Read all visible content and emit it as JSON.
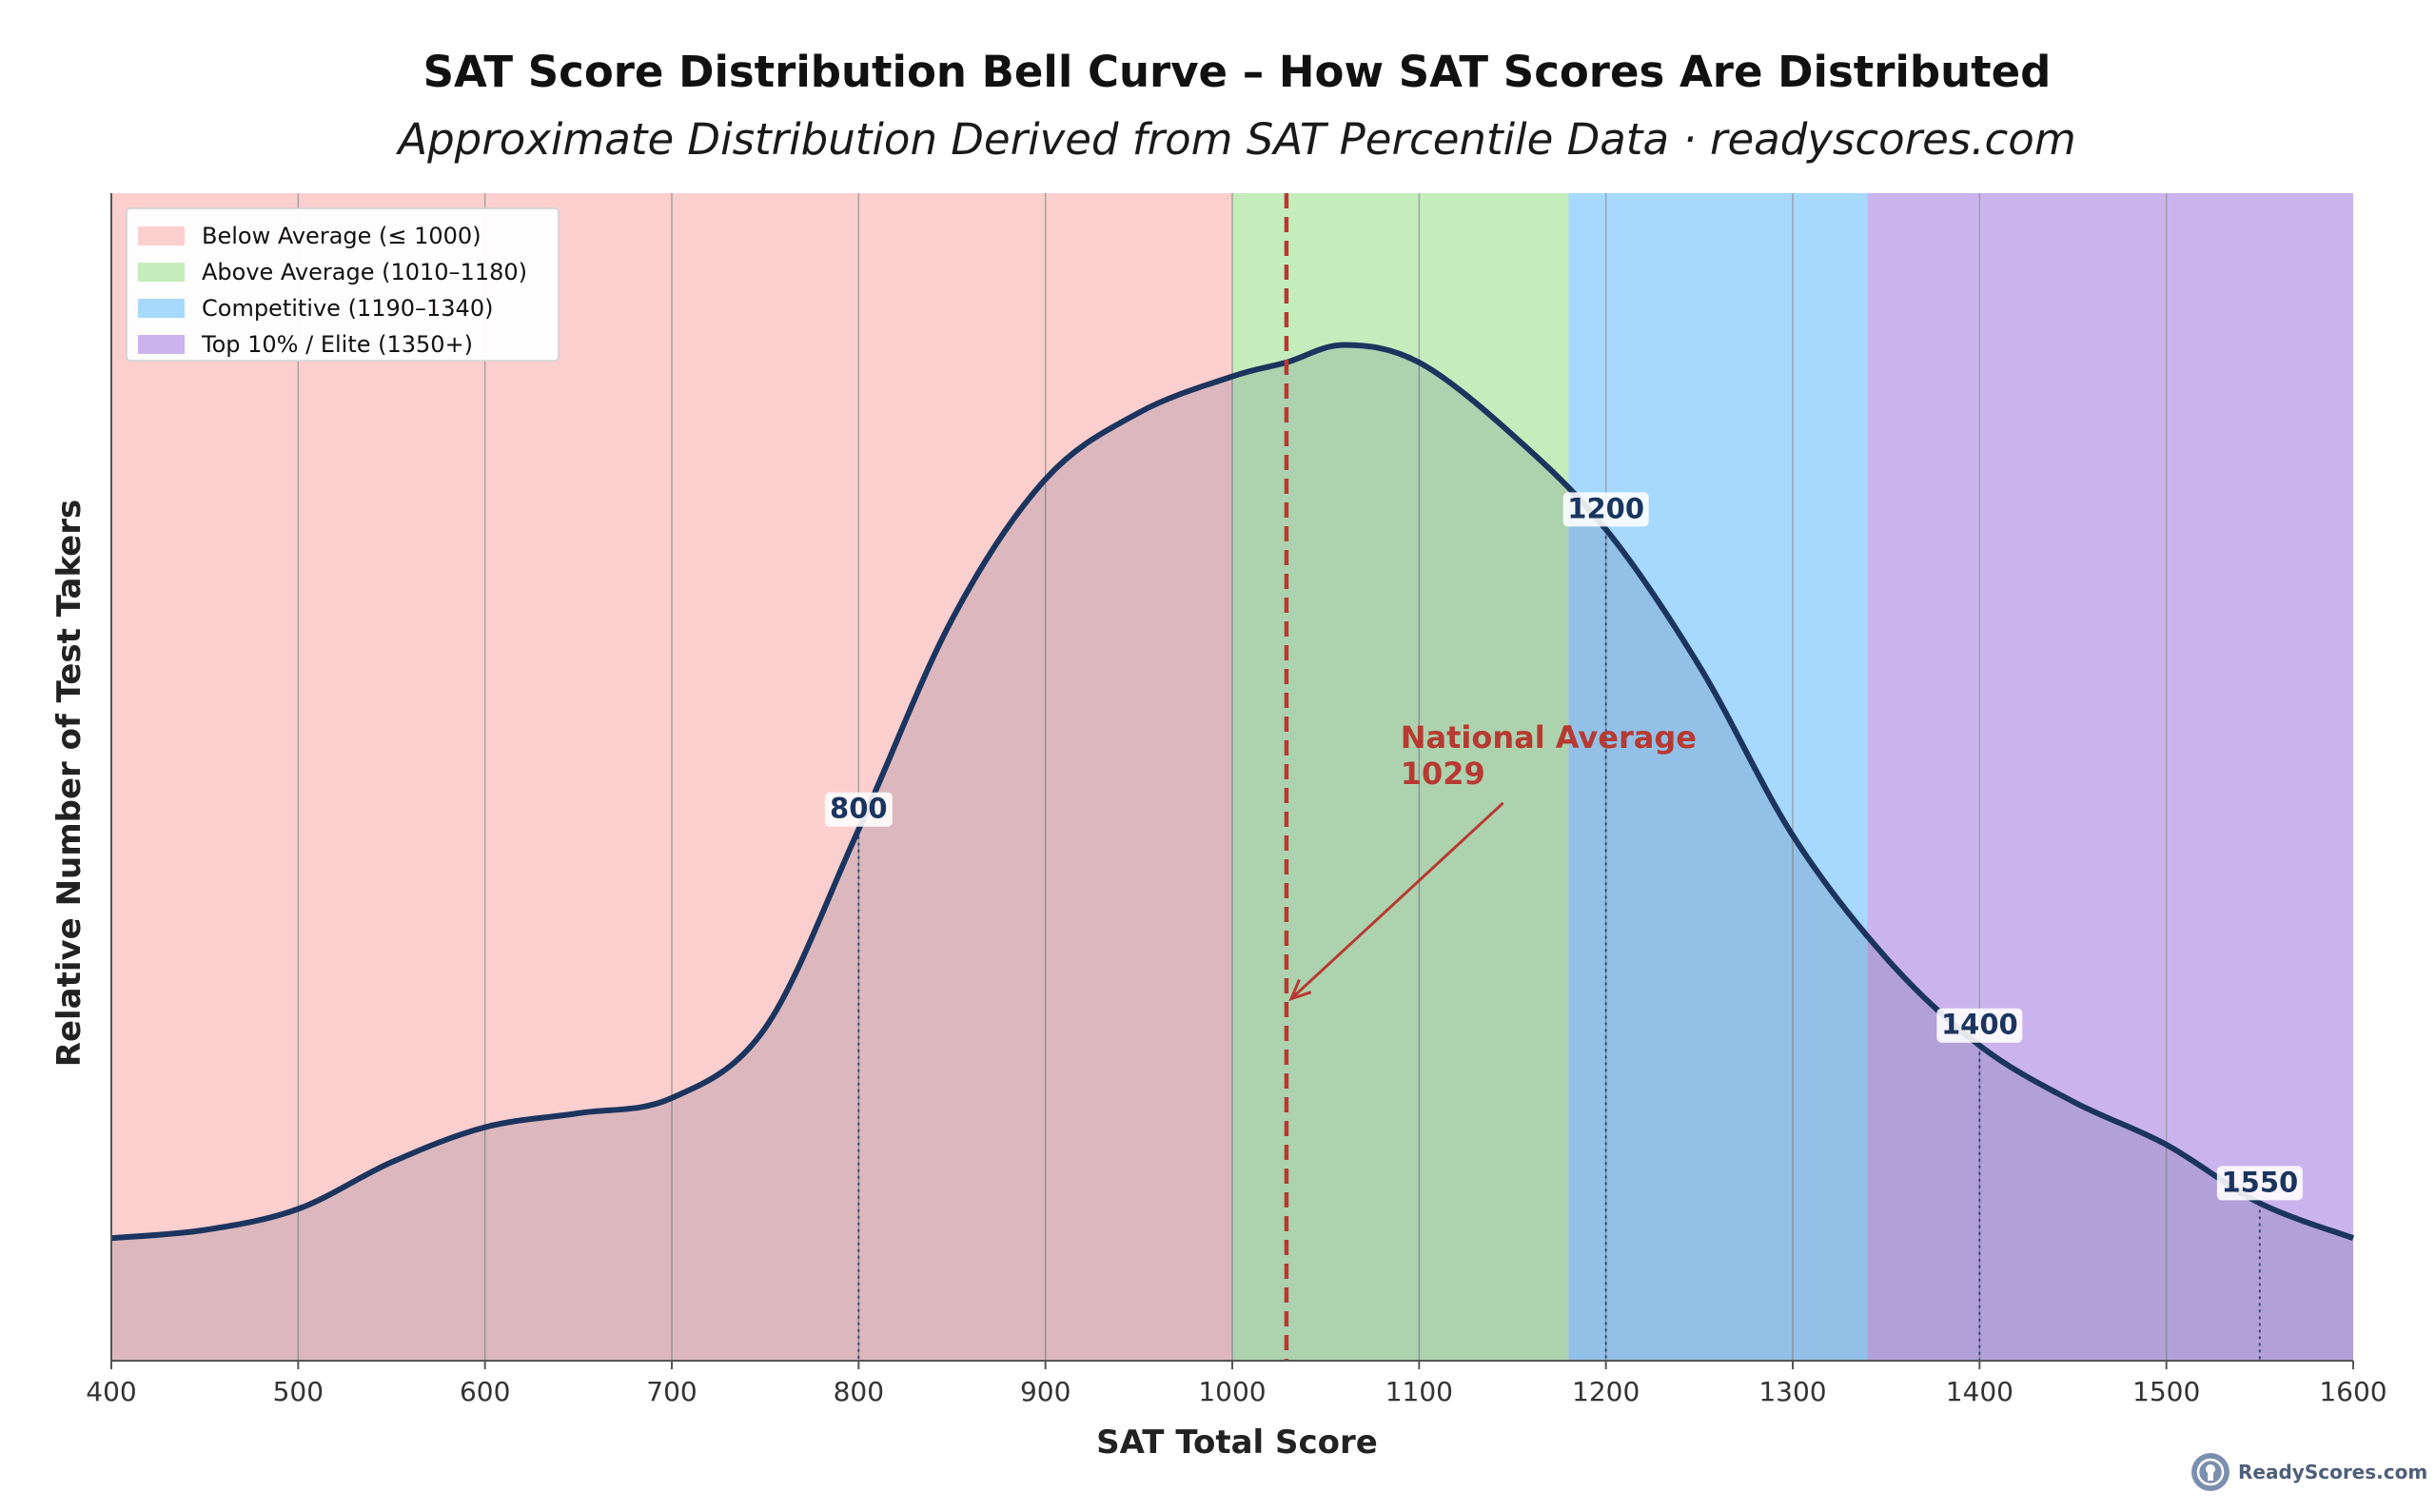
{
  "chart_data": {
    "type": "area",
    "title": "SAT Score Distribution Bell Curve – How SAT Scores Are Distributed",
    "subtitle": "Approximate Distribution Derived from SAT Percentile Data · readyscores.com",
    "xlabel": "SAT Total Score",
    "ylabel": "Relative Number of Test Takers",
    "xlim": [
      400,
      1600
    ],
    "ylim": [
      0,
      1
    ],
    "xticks": [
      400,
      500,
      600,
      700,
      800,
      900,
      1000,
      1100,
      1200,
      1300,
      1400,
      1500,
      1600
    ],
    "grid": "vertical",
    "legend_position": "top-left",
    "bands": [
      {
        "label": "Below Average (≤ 1000)",
        "from": 400,
        "to": 1000,
        "color": "#fccfcf"
      },
      {
        "label": "Above Average (1010–1180)",
        "from": 1000,
        "to": 1180,
        "color": "#c5edbc"
      },
      {
        "label": "Competitive (1190–1340)",
        "from": 1180,
        "to": 1340,
        "color": "#a7d8fd"
      },
      {
        "label": "Top 10% / Elite (1350+)",
        "from": 1340,
        "to": 1600,
        "color": "#cbb4ee"
      }
    ],
    "series": [
      {
        "x": [
          400,
          450,
          500,
          550,
          600,
          650,
          700,
          750,
          800,
          850,
          900,
          950,
          1000,
          1029,
          1060,
          1100,
          1150,
          1200,
          1250,
          1300,
          1350,
          1400,
          1450,
          1500,
          1550,
          1600
        ],
        "y": [
          0.105,
          0.112,
          0.13,
          0.17,
          0.2,
          0.212,
          0.225,
          0.285,
          0.455,
          0.635,
          0.755,
          0.812,
          0.843,
          0.855,
          0.87,
          0.855,
          0.793,
          0.712,
          0.595,
          0.45,
          0.345,
          0.27,
          0.222,
          0.185,
          0.135,
          0.105
        ],
        "color": "#1b355f"
      }
    ],
    "markers": [
      {
        "x": 800,
        "label": "800",
        "y": 0.455
      },
      {
        "x": 1200,
        "label": "1200",
        "y": 0.712
      },
      {
        "x": 1400,
        "label": "1400",
        "y": 0.27
      },
      {
        "x": 1550,
        "label": "1550",
        "y": 0.135
      }
    ],
    "reference_line": {
      "x": 1029,
      "label_line1": "National Average",
      "label_line2": "1029",
      "color": "#b73a32",
      "arrow_tip_y": 0.31,
      "text_anchor_x": 1090,
      "text_anchor_y": 0.525
    },
    "colors": {
      "curve": "#1b355f",
      "fill": "#1b355f",
      "grid": "#999999",
      "axis": "#555555",
      "reference": "#b73a32"
    }
  },
  "watermark": {
    "text": "ReadyScores.com",
    "icon": "readyscores-logo-icon"
  }
}
